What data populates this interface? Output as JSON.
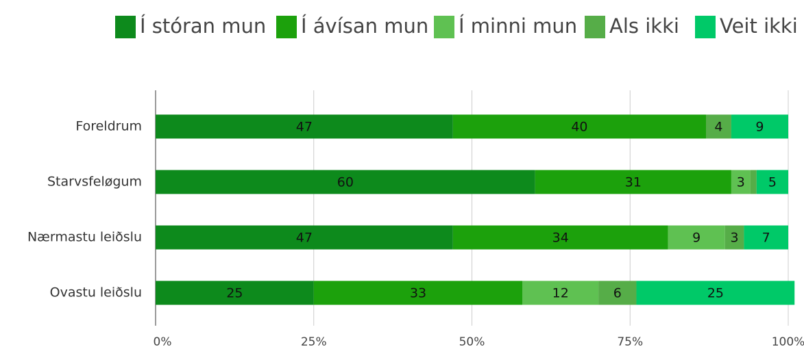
{
  "chart_data": {
    "type": "stacked-bar-horizontal",
    "categories": [
      "Foreldrum",
      "Starvsfeløgum",
      "Nærmastu leiðslu",
      "Ovastu leiðslu"
    ],
    "series": [
      {
        "name": "Í stóran mun",
        "color": "#0d8a1c",
        "values": [
          47,
          60,
          47,
          25
        ]
      },
      {
        "name": "Í ávísan mun",
        "color": "#1ca10c",
        "values": [
          40,
          31,
          34,
          33
        ]
      },
      {
        "name": "Í minni mun",
        "color": "#5fc152",
        "values": [
          0,
          3,
          9,
          12
        ]
      },
      {
        "name": "Als ikki",
        "color": "#56ad48",
        "values": [
          4,
          1,
          3,
          6
        ]
      },
      {
        "name": "Veit ikki",
        "color": "#00c968",
        "values": [
          9,
          5,
          7,
          25
        ]
      }
    ],
    "xlim": [
      0,
      100
    ],
    "xticks": [
      {
        "value": 0,
        "label": "0%"
      },
      {
        "value": 25,
        "label": "25%"
      },
      {
        "value": 50,
        "label": "50%"
      },
      {
        "value": 75,
        "label": "75%"
      },
      {
        "value": 100,
        "label": "100%"
      }
    ],
    "grid": true
  }
}
